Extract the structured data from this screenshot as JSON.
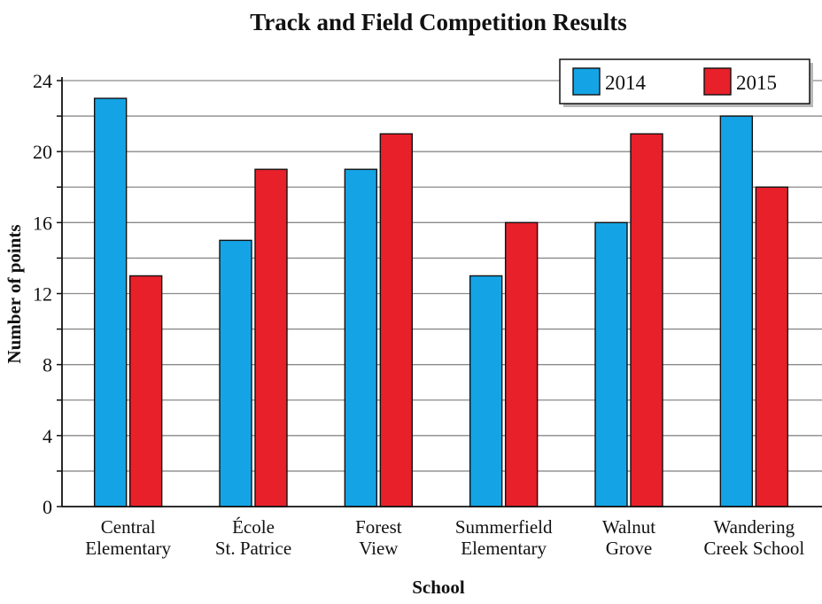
{
  "chart_data": {
    "type": "bar",
    "title": "Track and Field Competition Results",
    "xlabel": "School",
    "ylabel": "Number of points",
    "categories": [
      [
        "Central",
        "Elementary"
      ],
      [
        "École",
        "St. Patrice"
      ],
      [
        "Forest",
        "View"
      ],
      [
        "Summerfield",
        "Elementary"
      ],
      [
        "Walnut",
        "Grove"
      ],
      [
        "Wandering",
        "Creek School"
      ]
    ],
    "series": [
      {
        "name": "2014",
        "color": "#14a4e6",
        "values": [
          23,
          15,
          19,
          13,
          16,
          22
        ]
      },
      {
        "name": "2015",
        "color": "#e8202a",
        "values": [
          13,
          19,
          21,
          16,
          21,
          18
        ]
      }
    ],
    "ylim": [
      0,
      24
    ],
    "yticks": [
      0,
      4,
      8,
      12,
      16,
      20,
      24
    ],
    "minor_tick_step": 2,
    "grid": true,
    "legend_position": "top-right"
  }
}
